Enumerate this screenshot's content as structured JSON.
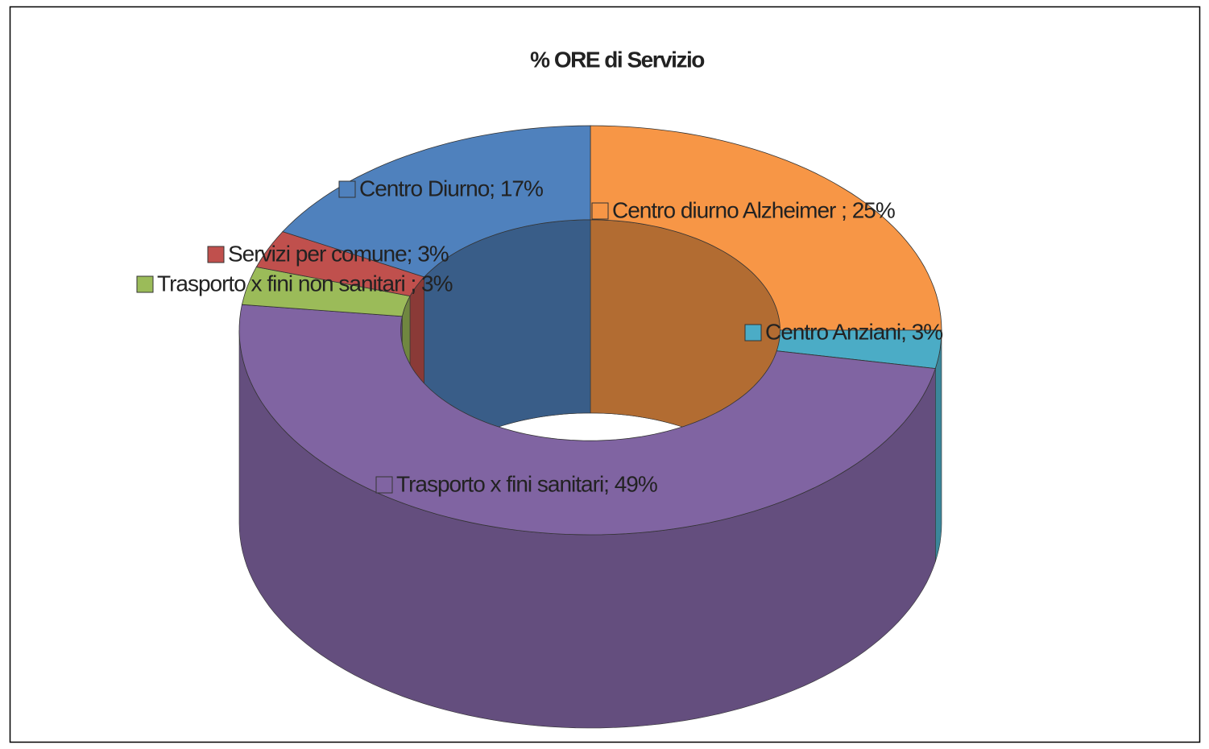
{
  "chart_data": {
    "type": "donut3d",
    "title": "% ORE di Servizio",
    "values": [
      25,
      3,
      49,
      3,
      3,
      17
    ],
    "value_labels": [
      "Centro diurno Alzheimer ; 25%",
      "Centro Anziani; 3%",
      "Trasporto x fini sanitari; 49%",
      "Trasporto x fini non sanitari ; 3%",
      "Servizi per comune; 3%",
      "Centro Diurno; 17%"
    ],
    "colors": [
      "#f79646",
      "#4bacc6",
      "#8064a2",
      "#9bbb59",
      "#c0504d",
      "#4f81bd"
    ]
  }
}
